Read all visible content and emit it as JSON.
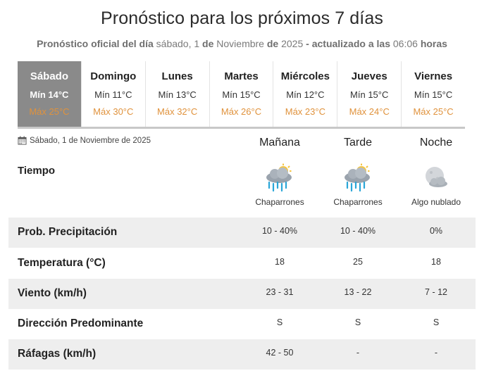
{
  "header": {
    "title": "Pronóstico para los próximos 7 días",
    "sub_bold1": "Pronóstico oficial del día",
    "sub_day": "sábado, 1",
    "sub_de1": "de",
    "sub_month": "Noviembre",
    "sub_de2": "de",
    "sub_year": "2025",
    "sub_bold2": "- actualizado a las",
    "sub_time": "06:06",
    "sub_bold3": "horas"
  },
  "days": [
    {
      "name": "Sábado",
      "min": "Mín 14°C",
      "max": "Máx 25°C",
      "active": true
    },
    {
      "name": "Domingo",
      "min": "Mín 11°C",
      "max": "Máx 30°C"
    },
    {
      "name": "Lunes",
      "min": "Mín 13°C",
      "max": "Máx 32°C"
    },
    {
      "name": "Martes",
      "min": "Mín 15°C",
      "max": "Máx 26°C"
    },
    {
      "name": "Miércoles",
      "min": "Mín 12°C",
      "max": "Máx 23°C"
    },
    {
      "name": "Jueves",
      "min": "Mín 15°C",
      "max": "Máx 24°C"
    },
    {
      "name": "Viernes",
      "min": "Mín 15°C",
      "max": "Máx 25°C"
    }
  ],
  "detail": {
    "date": "Sábado, 1 de Noviembre de 2025",
    "columns": [
      "Mañana",
      "Tarde",
      "Noche"
    ],
    "tiempo_label": "Tiempo",
    "weather": [
      {
        "label": "Chaparrones",
        "icon": "showers-icon"
      },
      {
        "label": "Chaparrones",
        "icon": "showers-icon"
      },
      {
        "label": "Algo nublado",
        "icon": "partly-cloudy-night-icon"
      }
    ],
    "rows": [
      {
        "label": "Prob. Precipitación",
        "values": [
          "10 - 40%",
          "10 - 40%",
          "0%"
        ]
      },
      {
        "label": "Temperatura (°C)",
        "values": [
          "18",
          "25",
          "18"
        ]
      },
      {
        "label": "Viento (km/h)",
        "values": [
          "23 - 31",
          "13 - 22",
          "7 - 12"
        ]
      },
      {
        "label": "Dirección Predominante",
        "values": [
          "S",
          "S",
          "S"
        ]
      },
      {
        "label": "Ráfagas (km/h)",
        "values": [
          "42 - 50",
          "-",
          "-"
        ]
      }
    ]
  },
  "colors": {
    "accent_max": "#e0923c",
    "active_day_bg": "#8a8a8a",
    "row_shade": "#eeeeee"
  }
}
